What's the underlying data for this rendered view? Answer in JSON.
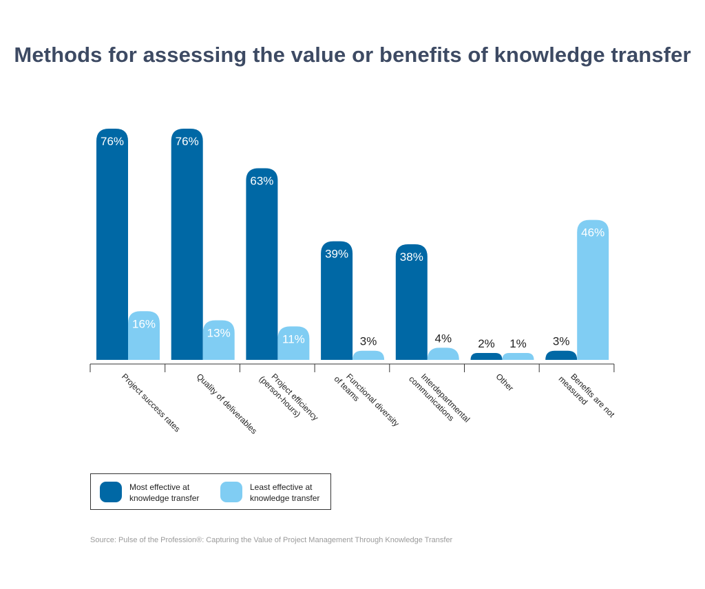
{
  "chart_data": {
    "type": "bar",
    "title": "Methods for assessing the value or benefits of knowledge transfer",
    "categories": [
      [
        "Project success rates"
      ],
      [
        "Quality of deliverables"
      ],
      [
        "Project efficiency",
        "(person-hours)"
      ],
      [
        "Functional diversity",
        "of teams"
      ],
      [
        "Interdepartmental",
        "communications"
      ],
      [
        "Other"
      ],
      [
        "Benefits are not",
        "measured"
      ]
    ],
    "series": [
      {
        "name": "Most effective at knowledge transfer",
        "values": [
          76,
          76,
          63,
          39,
          38,
          2,
          3
        ],
        "labels": [
          "76%",
          "76%",
          "63%",
          "39%",
          "38%",
          "2%",
          "3%"
        ],
        "color": "#0068a5"
      },
      {
        "name": "Least effective at knowledge transfer",
        "values": [
          16,
          13,
          11,
          3,
          4,
          1,
          46
        ],
        "labels": [
          "16%",
          "13%",
          "11%",
          "3%",
          "4%",
          "1%",
          "46%"
        ],
        "color": "#80cdf3"
      }
    ],
    "ylim": [
      0,
      80
    ],
    "grid": false,
    "legend_position": "bottom-left"
  },
  "legend": {
    "most": [
      "Most effective at",
      "knowledge transfer"
    ],
    "least": [
      "Least effective at",
      "knowledge transfer"
    ]
  },
  "source": "Source: Pulse of the Profession®: Capturing the Value of Project Management Through Knowledge Transfer"
}
